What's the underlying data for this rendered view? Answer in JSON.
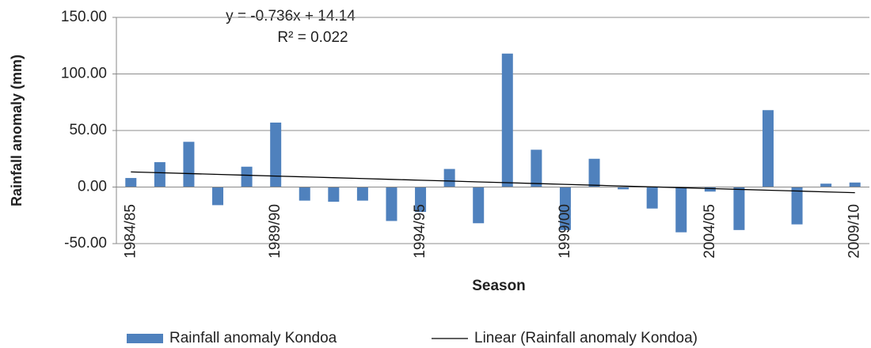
{
  "chart_data": {
    "type": "bar",
    "x_label": "Season",
    "y_label": "Rainfall anomaly (mm)",
    "annotations": [
      "y = -0.736x + 14.14",
      "R² = 0.022"
    ],
    "categories": [
      "1984/85",
      null,
      null,
      null,
      null,
      "1989/90",
      null,
      null,
      null,
      null,
      "1994/95",
      null,
      null,
      null,
      null,
      "1999/00",
      null,
      null,
      null,
      null,
      "2004/05",
      null,
      null,
      null,
      null,
      "2009/10"
    ],
    "series": [
      {
        "name": "Rainfall anomaly Kondoa",
        "type": "bar",
        "color": "#4f81bd",
        "values": [
          8,
          22,
          40,
          -16,
          18,
          57,
          -12,
          -13,
          -12,
          -30,
          -22,
          16,
          -32,
          118,
          33,
          -38,
          25,
          -2,
          -19,
          -40,
          -4,
          -38,
          68,
          -33,
          3,
          4
        ]
      },
      {
        "name": "Linear (Rainfall anomaly Kondoa)",
        "type": "line",
        "color": "#000000",
        "values": [
          13.4,
          12.67,
          11.93,
          11.2,
          10.46,
          9.72,
          8.99,
          8.25,
          7.52,
          6.78,
          6.04,
          5.31,
          4.57,
          3.84,
          3.1,
          2.36,
          1.63,
          0.89,
          0.16,
          -0.58,
          -1.32,
          -2.05,
          -2.79,
          -3.52,
          -4.26,
          -5.0
        ]
      }
    ],
    "ylim": [
      -50,
      150
    ],
    "yticks": [
      {
        "value": -50,
        "label": "-50.00"
      },
      {
        "value": 0,
        "label": "0.00"
      },
      {
        "value": 50,
        "label": "50.00"
      },
      {
        "value": 100,
        "label": "100.00"
      },
      {
        "value": 150,
        "label": "150.00"
      }
    ],
    "grid": true
  }
}
